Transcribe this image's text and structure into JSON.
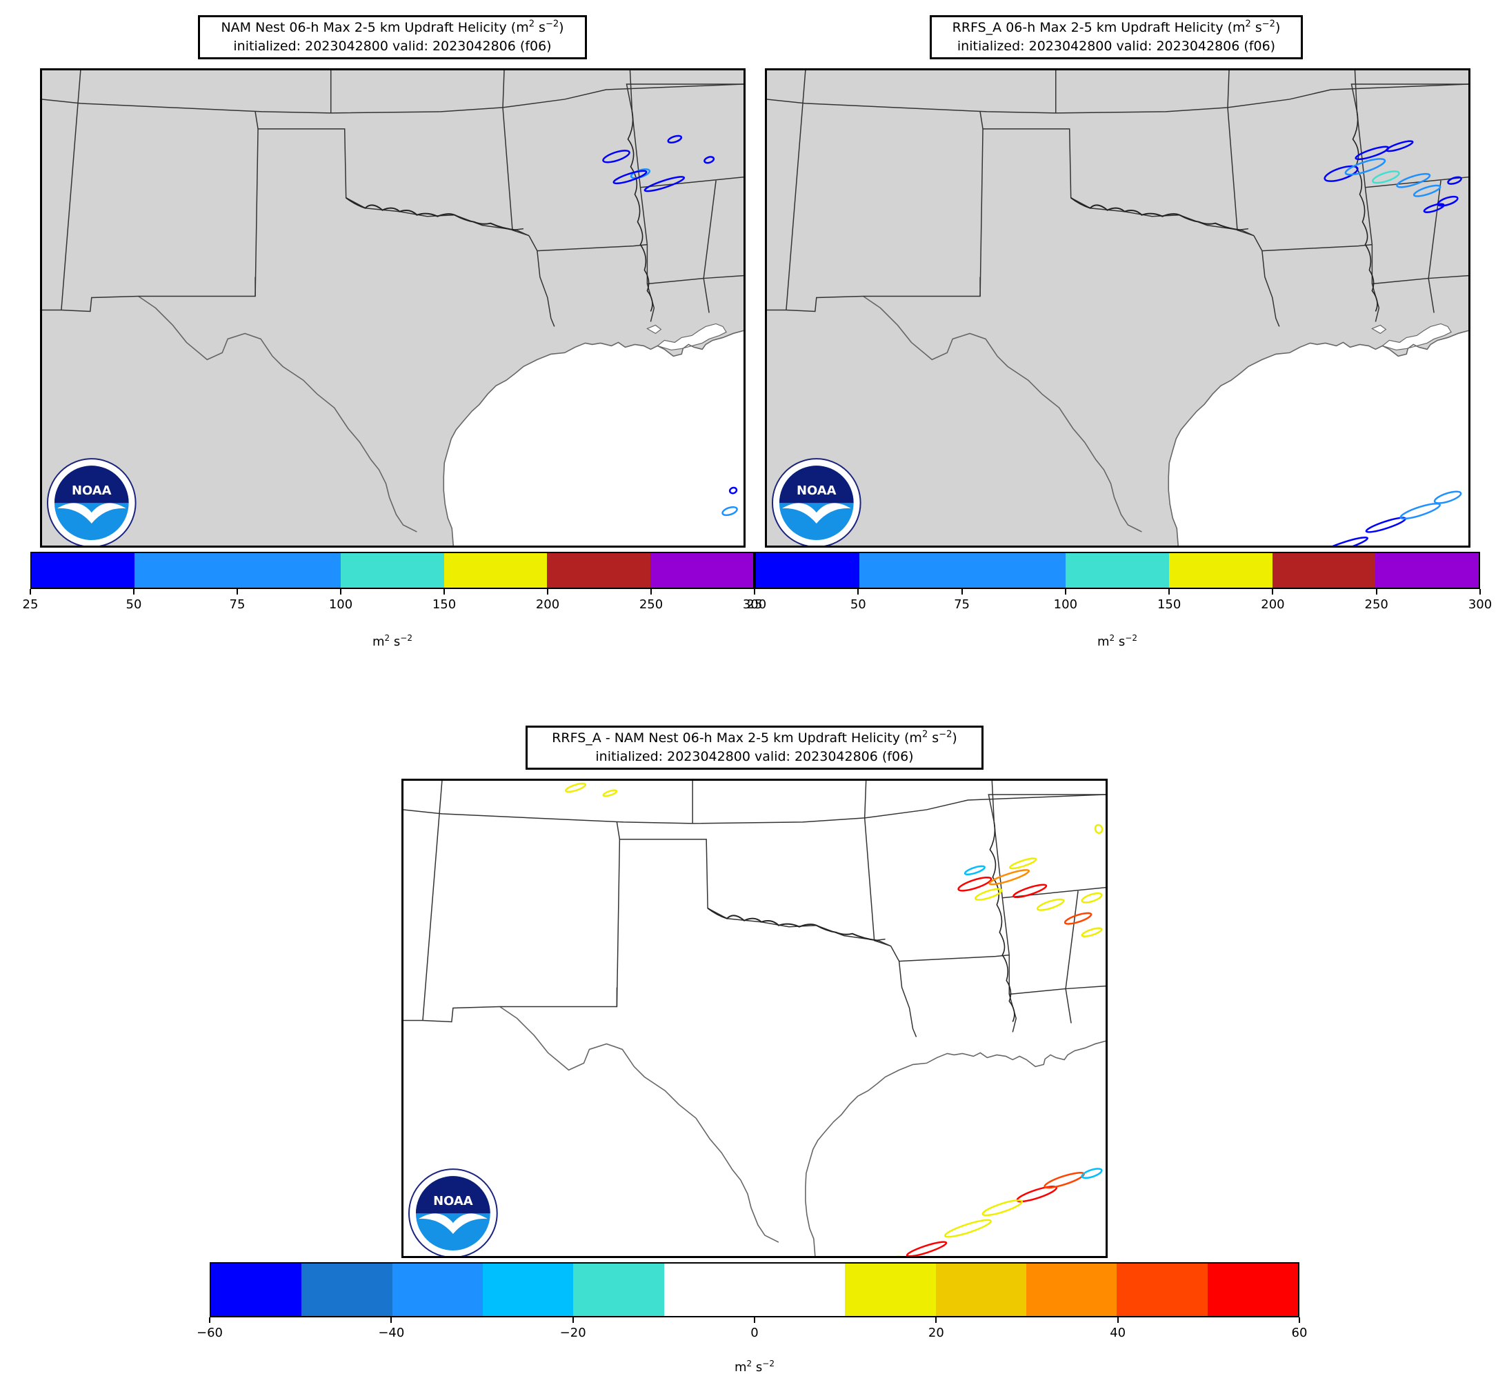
{
  "panels": [
    {
      "id": "nam",
      "title_line1_main": "NAM Nest 06-h Max 2-5 km Updraft Helicity (m",
      "title_line1_exp": "2",
      "title_line1_mid": " s",
      "title_line1_exp2": "−2",
      "title_line1_end": ")",
      "title_line2": "initialized: 2023042800 valid: 2023042806 (f06)",
      "colorbar": {
        "colors": [
          "#0000ff",
          "#1e90ff",
          "#1e90ff",
          "#40e0d0",
          "#eeee00",
          "#b22222",
          "#9400d3"
        ],
        "tick_labels": [
          "25",
          "50",
          "75",
          "100",
          "150",
          "200",
          "250",
          "300"
        ],
        "unit_base": "m",
        "unit_exp1": "2",
        "unit_mid": " s",
        "unit_exp2": "−2"
      },
      "logo_text": "NOAA"
    },
    {
      "id": "rrfs",
      "title_line1_main": "RRFS_A 06-h Max 2-5 km Updraft Helicity (m",
      "title_line1_exp": "2",
      "title_line1_mid": " s",
      "title_line1_exp2": "−2",
      "title_line1_end": ")",
      "title_line2": "initialized: 2023042800 valid: 2023042806 (f06)",
      "colorbar": {
        "colors": [
          "#0000ff",
          "#1e90ff",
          "#1e90ff",
          "#40e0d0",
          "#eeee00",
          "#b22222",
          "#9400d3"
        ],
        "tick_labels": [
          "25",
          "50",
          "75",
          "100",
          "150",
          "200",
          "250",
          "300"
        ],
        "unit_base": "m",
        "unit_exp1": "2",
        "unit_mid": " s",
        "unit_exp2": "−2"
      },
      "logo_text": "NOAA"
    },
    {
      "id": "diff",
      "title_line1_main": "RRFS_A - NAM Nest 06-h Max 2-5 km Updraft Helicity (m",
      "title_line1_exp": "2",
      "title_line1_mid": " s",
      "title_line1_exp2": "−2",
      "title_line1_end": ")",
      "title_line2": "initialized: 2023042800 valid: 2023042806 (f06)",
      "colorbar": {
        "colors": [
          "#0000ff",
          "#1874cd",
          "#1e90ff",
          "#00bfff",
          "#40e0d0",
          "#ffffff",
          "#ffffff",
          "#eeee00",
          "#eec900",
          "#ff8c00",
          "#ff4500",
          "#ff0000"
        ],
        "tick_labels": [
          "−60",
          "−40",
          "−20",
          "0",
          "20",
          "40",
          "60"
        ],
        "unit_base": "m",
        "unit_exp1": "2",
        "unit_mid": " s",
        "unit_exp2": "−2"
      },
      "logo_text": "NOAA"
    }
  ],
  "colors": {
    "land": "#d3d3d3",
    "water": "#ffffff",
    "border": "#333333",
    "coast": "#666666"
  }
}
